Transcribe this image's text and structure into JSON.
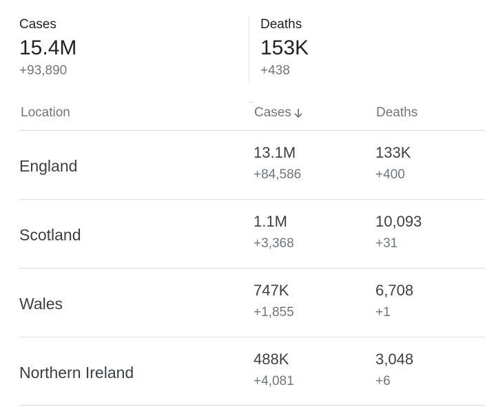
{
  "summary": {
    "cases": {
      "label": "Cases",
      "value": "15.4M",
      "delta": "+93,890"
    },
    "deaths": {
      "label": "Deaths",
      "value": "153K",
      "delta": "+438"
    }
  },
  "table": {
    "headers": {
      "location": "Location",
      "cases": "Cases",
      "deaths": "Deaths"
    },
    "sort_icon": "arrow-down-icon",
    "rows": [
      {
        "location": "England",
        "cases": "13.1M",
        "cases_delta": "+84,586",
        "deaths": "133K",
        "deaths_delta": "+400"
      },
      {
        "location": "Scotland",
        "cases": "1.1M",
        "cases_delta": "+3,368",
        "deaths": "10,093",
        "deaths_delta": "+31"
      },
      {
        "location": "Wales",
        "cases": "747K",
        "cases_delta": "+1,855",
        "deaths": "6,708",
        "deaths_delta": "+1"
      },
      {
        "location": "Northern Ireland",
        "cases": "488K",
        "cases_delta": "+4,081",
        "deaths": "3,048",
        "deaths_delta": "+6"
      }
    ]
  }
}
